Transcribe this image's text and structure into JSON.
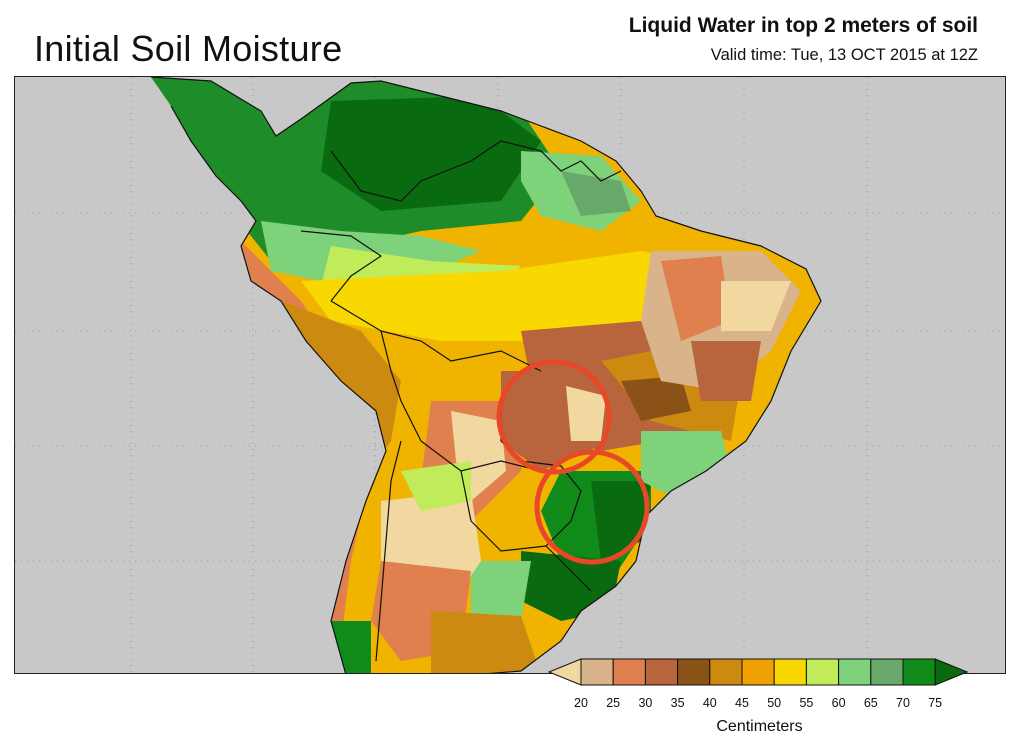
{
  "header": {
    "title": "Initial Soil Moisture",
    "subtitle": "Liquid Water in top 2 meters of soil",
    "valid_time": "Valid time: Tue, 13 OCT 2015 at 12Z"
  },
  "legend": {
    "unit_label": "Centimeters",
    "ticks": [
      "20",
      "25",
      "30",
      "35",
      "40",
      "45",
      "50",
      "55",
      "60",
      "65",
      "70",
      "75"
    ],
    "colors": [
      "#f0d8a0",
      "#d9b48a",
      "#e0804e",
      "#b8643c",
      "#8a5216",
      "#cc8a10",
      "#f0a000",
      "#f8d800",
      "#c0ec5a",
      "#7ed27a",
      "#68a86a",
      "#108a18",
      "#0a6a10"
    ]
  },
  "map": {
    "ocean_color": "#c8c8c8",
    "highlight_color": "#e84828",
    "highlights": [
      "circle-paraguay",
      "circle-southern-brazil"
    ]
  }
}
